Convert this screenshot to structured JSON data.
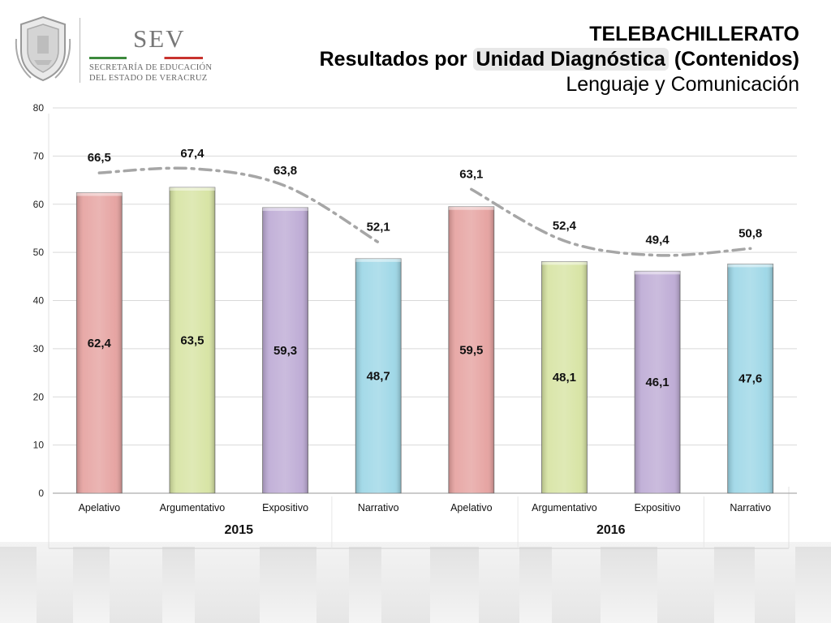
{
  "header": {
    "title_line1": "TELEBACHILLERATO",
    "title_line2_pre": "Resultados por ",
    "title_line2_hl": "Unidad Diagnóstica",
    "title_line2_post": " (Contenidos)",
    "title_line3": "Lenguaje y Comunicación"
  },
  "logo": {
    "brand": "SEV",
    "org_line1": "SECRETARÍA DE EDUCACIÓN",
    "org_line2": "DEL ESTADO DE VERACRUZ",
    "icon": "veracruz-shield-icon"
  },
  "chart_data": {
    "type": "bar",
    "categories": [
      "Apelativo",
      "Argumentativo",
      "Expositivo",
      "Narrativo",
      "Apelativo",
      "Argumentativo",
      "Expositivo",
      "Narrativo"
    ],
    "groups": [
      {
        "label": "2015",
        "start": 0,
        "end": 3
      },
      {
        "label": "2016",
        "start": 4,
        "end": 7
      }
    ],
    "series": [
      {
        "type": "bar",
        "values": [
          62.4,
          63.5,
          59.3,
          48.7,
          59.5,
          48.1,
          46.1,
          47.6
        ],
        "labels": [
          "62,4",
          "63,5",
          "59,3",
          "48,7",
          "59,5",
          "48,1",
          "46,1",
          "47,6"
        ]
      },
      {
        "type": "line",
        "style": "dash-dot",
        "values": [
          66.5,
          67.4,
          63.8,
          52.1,
          63.1,
          52.4,
          49.4,
          50.8
        ],
        "labels": [
          "66,5",
          "67,4",
          "63,8",
          "52,1",
          "63,1",
          "52,4",
          "49,4",
          "50,8"
        ],
        "segments": [
          [
            0,
            3
          ],
          [
            4,
            7
          ]
        ]
      }
    ],
    "bar_colors": [
      "#e5a09e",
      "#d6e3a1",
      "#bca9d4",
      "#9bd6e6",
      "#e5a09e",
      "#d6e3a1",
      "#bca9d4",
      "#9bd6e6"
    ],
    "line_color": "#a6a6a6",
    "ylim": [
      0,
      80
    ],
    "yticks": [
      0,
      10,
      20,
      30,
      40,
      50,
      60,
      70,
      80
    ],
    "grid": true,
    "legend": "none"
  }
}
